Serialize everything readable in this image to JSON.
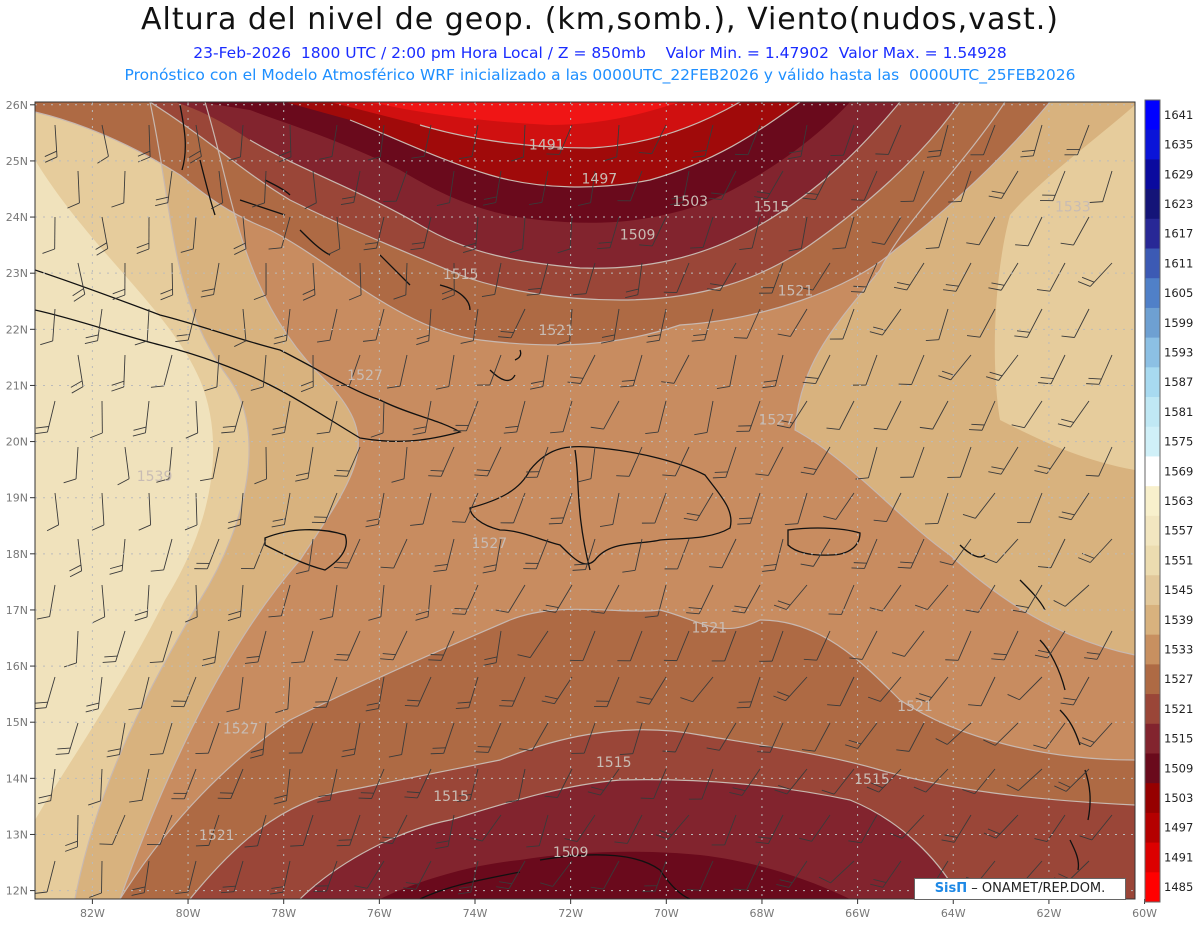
{
  "header": {
    "title": "Altura del nivel de geop. (km,somb.), Viento(nudos,vast.)",
    "line1": "23-Feb-2026  1800 UTC / 2:00 pm Hora Local / Z = 850mb    Valor Min. = 1.47902  Valor Max. = 1.54928",
    "line2": "Pronóstico con el Modelo Atmosférico WRF inicializado a las 0000UTC_22FEB2026 y válido hasta las  0000UTC_25FEB2026"
  },
  "axes": {
    "lat_labels": [
      "26N",
      "25N",
      "24N",
      "23N",
      "22N",
      "21N",
      "20N",
      "19N",
      "18N",
      "17N",
      "16N",
      "15N",
      "14N",
      "13N",
      "12N"
    ],
    "lon_labels": [
      "82W",
      "80W",
      "78W",
      "76W",
      "74W",
      "72W",
      "70W",
      "68W",
      "66W",
      "64W",
      "62W",
      "60W"
    ]
  },
  "colorbar": {
    "labels": [
      "1641",
      "1635",
      "1629",
      "1623",
      "1617",
      "1611",
      "1605",
      "1599",
      "1593",
      "1587",
      "1581",
      "1575",
      "1569",
      "1563",
      "1557",
      "1551",
      "1545",
      "1539",
      "1533",
      "1527",
      "1521",
      "1515",
      "1509",
      "1503",
      "1497",
      "1491",
      "1485"
    ],
    "colors": [
      "#0000ff",
      "#0a14d8",
      "#0a0a9e",
      "#141478",
      "#282896",
      "#3c5ab4",
      "#5080c8",
      "#6ea0d2",
      "#8cc0e4",
      "#a8daf0",
      "#c0e8f4",
      "#d0f0f8",
      "#ffffff",
      "#f8f0cc",
      "#f2e6c0",
      "#ecdcb0",
      "#e2c89a",
      "#d8b27e",
      "#c89060",
      "#ae6a44",
      "#9a4638",
      "#82242e",
      "#6a0a1c",
      "#960000",
      "#b40000",
      "#dc0000",
      "#ff0000"
    ]
  },
  "contour_labels": [
    {
      "text": "1491",
      "lon": -72.5,
      "lat": 25.2
    },
    {
      "text": "1497",
      "lon": -71.4,
      "lat": 24.6
    },
    {
      "text": "1503",
      "lon": -69.5,
      "lat": 24.2
    },
    {
      "text": "1509",
      "lon": -70.6,
      "lat": 23.6
    },
    {
      "text": "1515",
      "lon": -67.8,
      "lat": 24.1
    },
    {
      "text": "1515",
      "lon": -74.3,
      "lat": 22.9
    },
    {
      "text": "1521",
      "lon": -72.3,
      "lat": 21.9
    },
    {
      "text": "1521",
      "lon": -67.3,
      "lat": 22.6
    },
    {
      "text": "1533",
      "lon": -61.5,
      "lat": 24.1
    },
    {
      "text": "1527",
      "lon": -76.3,
      "lat": 21.1
    },
    {
      "text": "1527",
      "lon": -67.7,
      "lat": 20.3
    },
    {
      "text": "1539",
      "lon": -80.7,
      "lat": 19.3
    },
    {
      "text": "1527",
      "lon": -73.7,
      "lat": 18.1
    },
    {
      "text": "1521",
      "lon": -69.1,
      "lat": 16.6
    },
    {
      "text": "1521",
      "lon": -64.8,
      "lat": 15.2
    },
    {
      "text": "1527",
      "lon": -78.9,
      "lat": 14.8
    },
    {
      "text": "1515",
      "lon": -71.1,
      "lat": 14.2
    },
    {
      "text": "1515",
      "lon": -74.5,
      "lat": 13.6
    },
    {
      "text": "1515",
      "lon": -65.7,
      "lat": 13.9
    },
    {
      "text": "1521",
      "lon": -79.4,
      "lat": 12.9
    },
    {
      "text": "1509",
      "lon": -72.0,
      "lat": 12.6
    }
  ],
  "credit": {
    "brand": "SisΠ",
    "rest": "– ONAMET/REP.DOM."
  }
}
